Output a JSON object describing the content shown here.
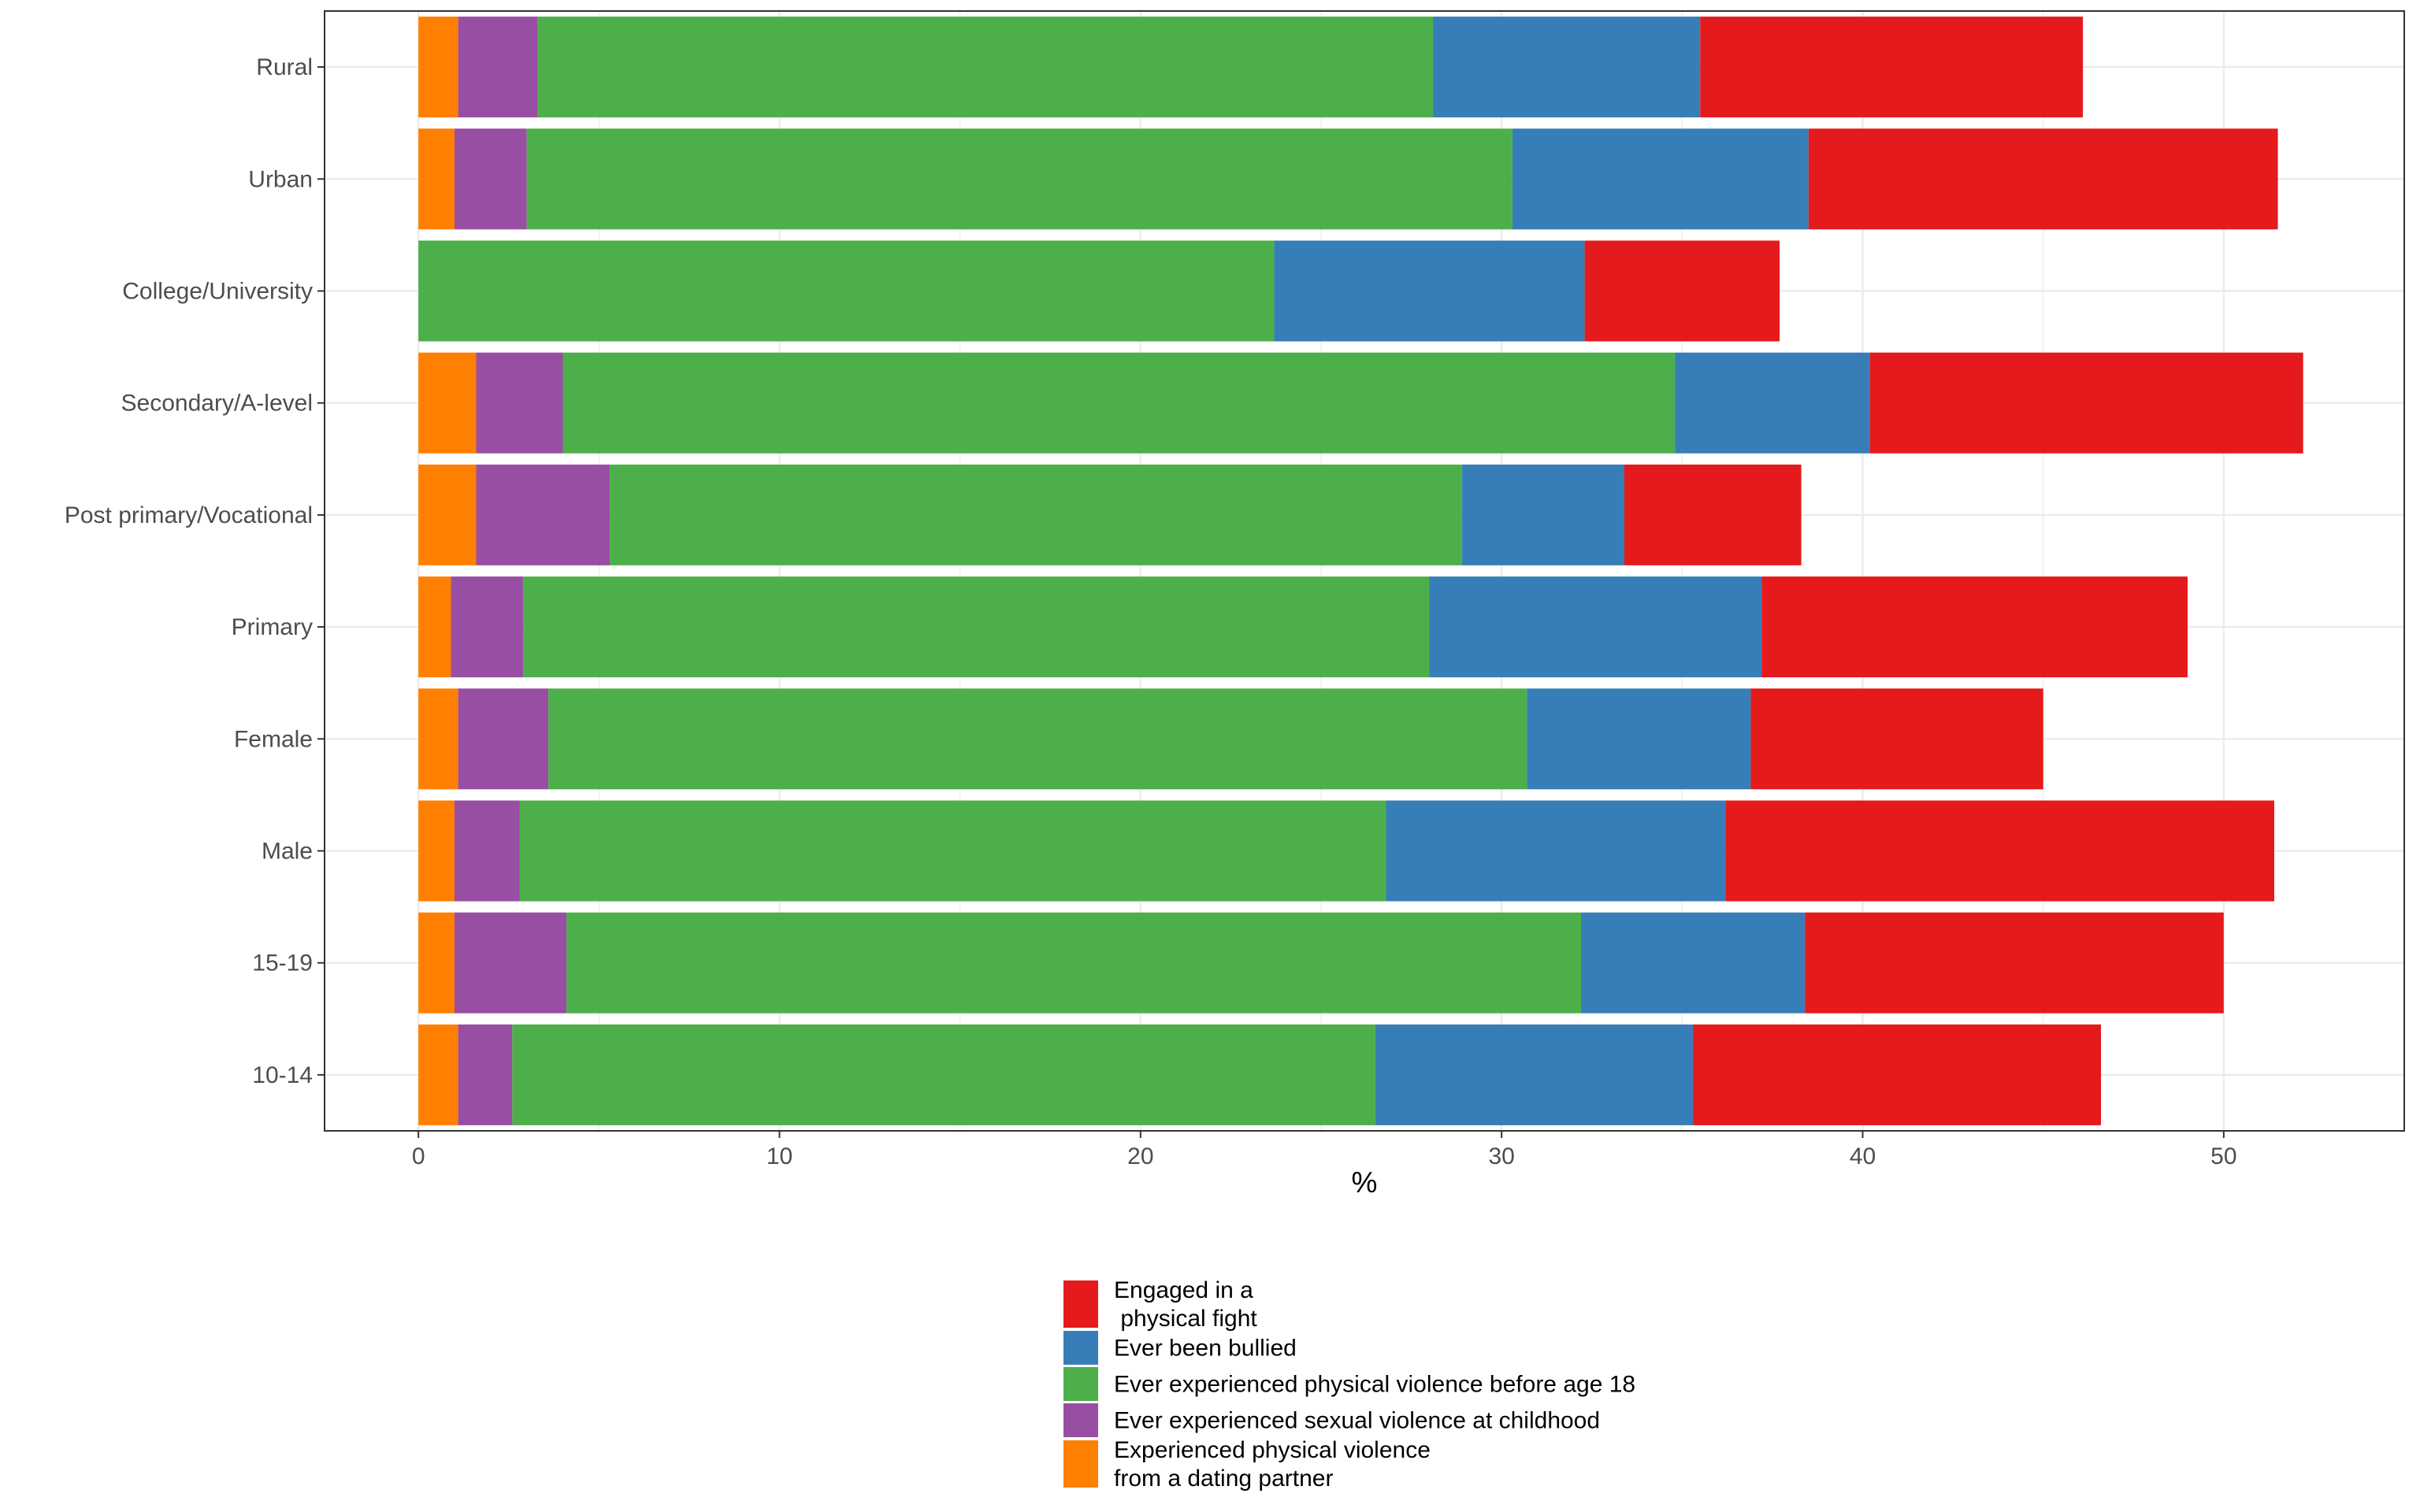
{
  "chart_data": {
    "type": "bar",
    "orientation": "horizontal",
    "stacked": true,
    "xlabel": "%",
    "ylabel": "",
    "title": "",
    "xlim": [
      -2.6,
      55
    ],
    "xticks": [
      0,
      10,
      20,
      30,
      40,
      50
    ],
    "grid": true,
    "legend_position": "bottom",
    "categories": [
      "Rural",
      "Urban",
      "College/University",
      "Secondary/A-level",
      "Post primary/Vocational",
      "Primary",
      "Female",
      "Male",
      "15-19",
      "10-14"
    ],
    "series": [
      {
        "name": "Experienced physical violence\nfrom a dating partner",
        "color": "#FF7F00",
        "values": [
          1.1,
          1.0,
          0.0,
          1.6,
          1.6,
          0.9,
          1.1,
          1.0,
          1.0,
          1.1
        ]
      },
      {
        "name": "Ever experienced sexual violence at childhood",
        "color": "#984EA3",
        "values": [
          2.2,
          2.0,
          0.0,
          2.4,
          3.7,
          2.0,
          2.5,
          1.8,
          3.1,
          1.5
        ]
      },
      {
        "name": "Ever experienced physical violence before age 18",
        "color": "#4DAF4A",
        "values": [
          24.8,
          27.3,
          23.7,
          30.8,
          23.6,
          25.1,
          27.1,
          24.0,
          28.1,
          23.9
        ]
      },
      {
        "name": "Ever been bullied",
        "color": "#377EB8",
        "values": [
          7.4,
          8.2,
          8.6,
          5.4,
          4.5,
          9.2,
          6.2,
          9.4,
          6.2,
          8.8
        ]
      },
      {
        "name": "Engaged in a\n physical fight",
        "color": "#E41A1C",
        "values": [
          10.6,
          13.0,
          5.4,
          12.0,
          4.9,
          11.8,
          8.1,
          15.2,
          11.6,
          11.3
        ]
      }
    ],
    "legend_order": [
      4,
      3,
      2,
      1,
      0
    ]
  }
}
